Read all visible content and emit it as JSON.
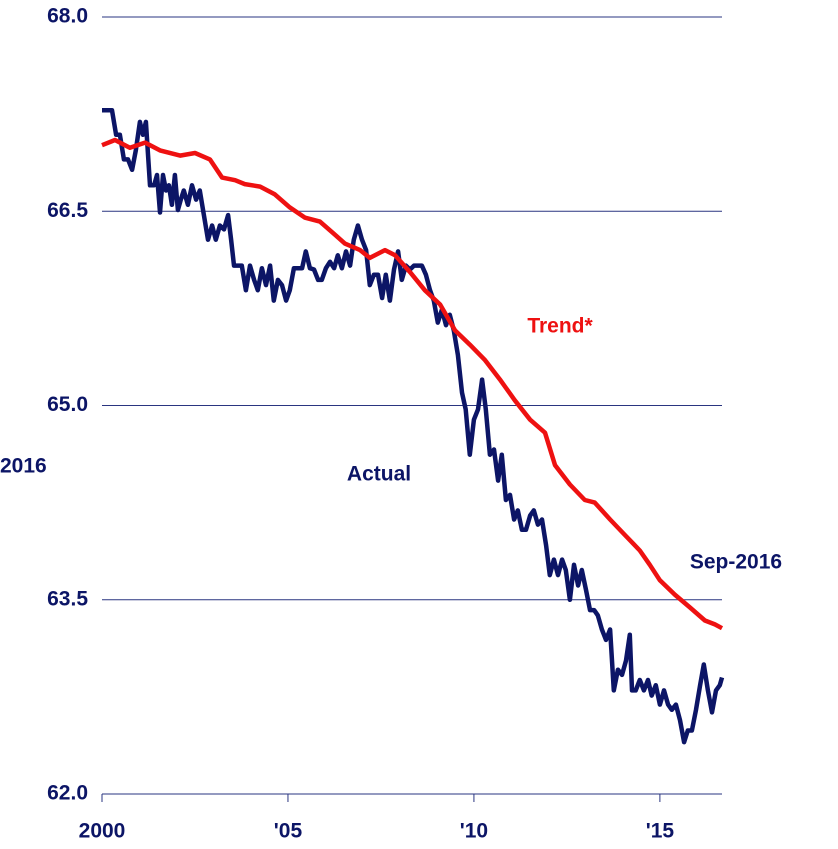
{
  "chart_data": {
    "type": "line",
    "xlim": [
      2000,
      2016.67
    ],
    "xticks": [
      {
        "value": 2000,
        "label": "2000"
      },
      {
        "value": 2005,
        "label": "'05"
      },
      {
        "value": 2010,
        "label": "'10"
      },
      {
        "value": 2015,
        "label": "'15"
      }
    ],
    "ylim": [
      62,
      68
    ],
    "yticks": [
      {
        "value": 62,
        "label": "62.0"
      },
      63.5,
      {
        "value": 65,
        "label": "65.0"
      },
      66.5,
      {
        "value": 68,
        "label": "68.0"
      }
    ],
    "grid": true,
    "annotations": [
      "Trend*",
      "Actual",
      "Sep-2016",
      "2016"
    ],
    "series": [
      {
        "name": "Actual",
        "color": "#0c1566",
        "x": [
          2000,
          2000.27,
          2000.38,
          2000.48,
          2000.59,
          2000.7,
          2000.81,
          2000.91,
          2001.02,
          2001.1,
          2001.18,
          2001.29,
          2001.4,
          2001.48,
          2001.56,
          2001.64,
          2001.72,
          2001.8,
          2001.88,
          2001.96,
          2002.04,
          2002.12,
          2002.2,
          2002.31,
          2002.42,
          2002.53,
          2002.63,
          2002.74,
          2002.85,
          2002.96,
          2003.06,
          2003.17,
          2003.28,
          2003.39,
          2003.47,
          2003.55,
          2003.76,
          2003.87,
          2003.98,
          2004.09,
          2004.19,
          2004.3,
          2004.41,
          2004.52,
          2004.62,
          2004.73,
          2004.84,
          2004.95,
          2005.05,
          2005.16,
          2005.38,
          2005.48,
          2005.59,
          2005.7,
          2005.81,
          2005.91,
          2006.02,
          2006.13,
          2006.24,
          2006.34,
          2006.45,
          2006.56,
          2006.67,
          2006.77,
          2006.88,
          2006.99,
          2007.1,
          2007.2,
          2007.31,
          2007.42,
          2007.53,
          2007.63,
          2007.74,
          2007.85,
          2007.96,
          2008.06,
          2008.17,
          2008.28,
          2008.39,
          2008.6,
          2008.71,
          2008.82,
          2008.92,
          2009.03,
          2009.14,
          2009.25,
          2009.35,
          2009.46,
          2009.57,
          2009.68,
          2009.78,
          2009.89,
          2010,
          2010.11,
          2010.22,
          2010.32,
          2010.43,
          2010.54,
          2010.65,
          2010.75,
          2010.86,
          2010.97,
          2011.08,
          2011.18,
          2011.29,
          2011.4,
          2011.51,
          2011.61,
          2011.72,
          2011.83,
          2011.94,
          2012.04,
          2012.15,
          2012.26,
          2012.37,
          2012.47,
          2012.58,
          2012.69,
          2012.8,
          2012.9,
          2013.01,
          2013.12,
          2013.23,
          2013.33,
          2013.44,
          2013.55,
          2013.66,
          2013.76,
          2013.87,
          2013.98,
          2014.09,
          2014.19,
          2014.25,
          2014.35,
          2014.46,
          2014.57,
          2014.68,
          2014.78,
          2014.89,
          2015,
          2015.11,
          2015.22,
          2015.32,
          2015.43,
          2015.54,
          2015.65,
          2015.75,
          2015.86,
          2015.97,
          2016.08,
          2016.18,
          2016.29,
          2016.4,
          2016.51,
          2016.61,
          2016.67
        ],
        "values": [
          67.28,
          67.28,
          67.09,
          67.09,
          66.9,
          66.9,
          66.82,
          66.97,
          67.19,
          67.09,
          67.19,
          66.7,
          66.7,
          66.78,
          66.49,
          66.78,
          66.66,
          66.7,
          66.55,
          66.78,
          66.51,
          66.59,
          66.66,
          66.55,
          66.7,
          66.59,
          66.66,
          66.47,
          66.28,
          66.39,
          66.28,
          66.39,
          66.36,
          66.47,
          66.28,
          66.08,
          66.08,
          65.89,
          66.08,
          65.97,
          65.89,
          66.06,
          65.93,
          66.08,
          65.81,
          65.97,
          65.93,
          65.81,
          65.89,
          66.06,
          66.06,
          66.19,
          66.06,
          66.05,
          65.97,
          65.97,
          66.06,
          66.11,
          66.06,
          66.16,
          66.06,
          66.19,
          66.08,
          66.28,
          66.39,
          66.28,
          66.2,
          65.93,
          66.01,
          66.01,
          65.83,
          66.01,
          65.81,
          66.05,
          66.19,
          65.97,
          66.08,
          66.05,
          66.08,
          66.08,
          66.01,
          65.89,
          65.81,
          65.64,
          65.74,
          65.62,
          65.7,
          65.58,
          65.39,
          65.1,
          64.97,
          64.62,
          64.89,
          64.97,
          65.2,
          64.97,
          64.62,
          64.66,
          64.42,
          64.62,
          64.27,
          64.31,
          64.12,
          64.19,
          64.04,
          64.04,
          64.15,
          64.19,
          64.08,
          64.12,
          63.92,
          63.69,
          63.81,
          63.69,
          63.81,
          63.73,
          63.5,
          63.77,
          63.61,
          63.73,
          63.58,
          63.42,
          63.42,
          63.38,
          63.27,
          63.19,
          63.27,
          62.8,
          62.96,
          62.92,
          63.03,
          63.23,
          62.8,
          62.8,
          62.88,
          62.8,
          62.88,
          62.76,
          62.84,
          62.69,
          62.8,
          62.69,
          62.65,
          62.69,
          62.57,
          62.4,
          62.49,
          62.49,
          62.65,
          62.84,
          63.0,
          62.8,
          62.63,
          62.8,
          62.84,
          62.9
        ]
      },
      {
        "name": "Trend*",
        "color": "#ee1111",
        "x": [
          2000,
          2000.35,
          2000.75,
          2001.16,
          2001.56,
          2002.1,
          2002.5,
          2002.9,
          2003.23,
          2003.58,
          2003.84,
          2004.25,
          2004.65,
          2005.05,
          2005.46,
          2005.86,
          2006.26,
          2006.53,
          2006.94,
          2007.2,
          2007.61,
          2007.88,
          2008.28,
          2008.68,
          2009.09,
          2009.49,
          2009.89,
          2010.3,
          2010.7,
          2011.1,
          2011.51,
          2011.91,
          2012.18,
          2012.58,
          2012.98,
          2013.25,
          2013.66,
          2014.06,
          2014.46,
          2014.73,
          2015,
          2015.4,
          2015.81,
          2016.21,
          2016.48,
          2016.67
        ],
        "values": [
          67.01,
          67.05,
          66.99,
          67.03,
          66.97,
          66.93,
          66.95,
          66.9,
          66.76,
          66.74,
          66.71,
          66.69,
          66.63,
          66.53,
          66.45,
          66.42,
          66.32,
          66.25,
          66.2,
          66.14,
          66.2,
          66.16,
          66.03,
          65.89,
          65.78,
          65.58,
          65.47,
          65.35,
          65.2,
          65.04,
          64.89,
          64.79,
          64.54,
          64.39,
          64.27,
          64.25,
          64.12,
          64.0,
          63.88,
          63.77,
          63.65,
          63.54,
          63.44,
          63.34,
          63.31,
          63.28
        ]
      }
    ]
  }
}
